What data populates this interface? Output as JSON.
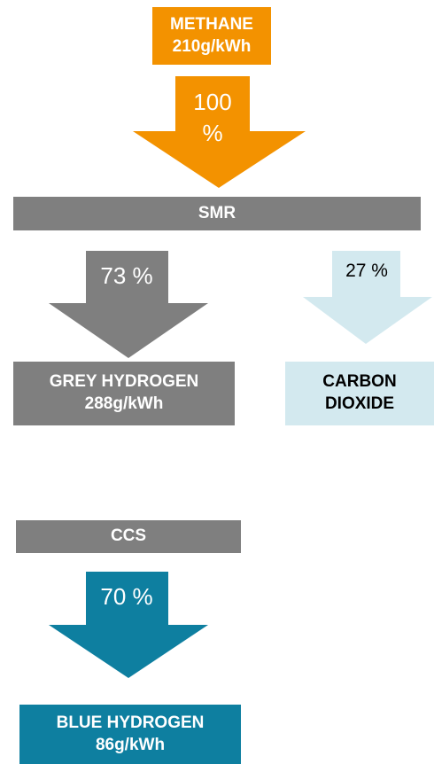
{
  "nodes": [
    {
      "label": "METHANE",
      "sublabel": "210g/kWh"
    },
    {
      "label": "SMR"
    },
    {
      "label": "GREY HYDROGEN",
      "sublabel": "288g/kWh"
    },
    {
      "label": "CARBON DIOXIDE"
    },
    {
      "label": "CCS"
    },
    {
      "label": "BLUE HYDROGEN",
      "sublabel": "86g/kWh"
    }
  ],
  "arrows": [
    {
      "label": "100 %"
    },
    {
      "label": "73 %"
    },
    {
      "label": "27 %"
    },
    {
      "label": "70 %"
    }
  ]
}
